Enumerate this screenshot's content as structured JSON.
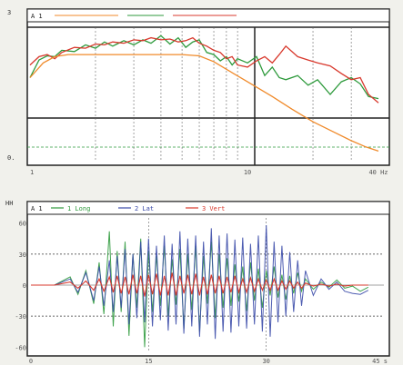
{
  "charts": {
    "top": {
      "side_top": "3",
      "side_bottom": "0.",
      "legend_title": "A 1",
      "x_ticks": [
        {
          "x": 1,
          "label": "1"
        },
        {
          "x": 10,
          "label": "10"
        },
        {
          "x": 40,
          "label": "40 Hz"
        }
      ]
    },
    "bottom": {
      "side_mark": "HH",
      "legend_title": "A 1",
      "legend": [
        {
          "label": "1 Long",
          "color": "#2e9a3c"
        },
        {
          "label": "2 Lat",
          "color": "#3a4aa8"
        },
        {
          "label": "3 Vert",
          "color": "#d8382c"
        }
      ],
      "y_ticks": [
        {
          "y": 60,
          "label": "60"
        },
        {
          "y": 30,
          "label": "30"
        },
        {
          "y": 0,
          "label": "0"
        },
        {
          "y": -30,
          "label": "-30"
        },
        {
          "y": -60,
          "label": "-60"
        }
      ],
      "x_ticks": [
        {
          "x": 0,
          "label": "0"
        },
        {
          "x": 15,
          "label": "15"
        },
        {
          "x": 30,
          "label": "30"
        },
        {
          "x": 45,
          "label": "45 s"
        }
      ]
    }
  },
  "chart_data": [
    {
      "type": "line",
      "title": "",
      "xscale": "log",
      "xlim": [
        1,
        40
      ],
      "ylim": [
        0,
        3.2
      ],
      "grid": true,
      "series": [
        {
          "color": "#2e9a3c",
          "x": [
            1,
            1.1,
            1.2,
            1.3,
            1.4,
            1.6,
            1.8,
            2,
            2.2,
            2.4,
            2.7,
            3,
            3.3,
            3.6,
            4,
            4.4,
            4.8,
            5.2,
            5.6,
            6,
            6.5,
            7,
            7.5,
            8,
            8.5,
            9,
            10,
            11,
            12,
            13,
            14,
            15,
            17,
            19,
            21,
            24,
            27,
            30,
            33,
            36,
            40
          ],
          "y": [
            2.0,
            2.42,
            2.52,
            2.5,
            2.65,
            2.62,
            2.78,
            2.7,
            2.85,
            2.75,
            2.88,
            2.78,
            2.9,
            2.82,
            3.0,
            2.8,
            2.95,
            2.72,
            2.85,
            2.9,
            2.6,
            2.55,
            2.4,
            2.5,
            2.3,
            2.45,
            2.35,
            2.5,
            2.05,
            2.25,
            2.0,
            1.95,
            2.05,
            1.82,
            1.95,
            1.6,
            1.9,
            2.0,
            1.85,
            1.55,
            1.5
          ]
        },
        {
          "color": "#d8382c",
          "x": [
            1,
            1.1,
            1.2,
            1.3,
            1.4,
            1.6,
            1.8,
            2,
            2.2,
            2.4,
            2.7,
            3,
            3.3,
            3.6,
            4,
            4.4,
            4.8,
            5.2,
            5.6,
            6,
            6.5,
            7,
            7.5,
            8,
            8.5,
            9,
            10,
            11,
            12,
            13,
            14,
            15,
            17,
            19,
            21,
            24,
            27,
            30,
            33,
            36,
            40
          ],
          "y": [
            2.3,
            2.5,
            2.55,
            2.45,
            2.6,
            2.72,
            2.7,
            2.8,
            2.78,
            2.85,
            2.82,
            2.9,
            2.88,
            2.95,
            2.9,
            2.92,
            2.85,
            2.88,
            2.95,
            2.82,
            2.75,
            2.65,
            2.6,
            2.45,
            2.5,
            2.3,
            2.25,
            2.4,
            2.5,
            2.35,
            2.55,
            2.75,
            2.5,
            2.42,
            2.35,
            2.28,
            2.1,
            1.95,
            2.0,
            1.6,
            1.4
          ]
        },
        {
          "color": "#f08a2a",
          "x": [
            1,
            1.15,
            1.3,
            1.5,
            2,
            3,
            4,
            5,
            6,
            7,
            8,
            10,
            13,
            16,
            20,
            25,
            30,
            35,
            40
          ],
          "y": [
            2.0,
            2.35,
            2.5,
            2.55,
            2.55,
            2.55,
            2.55,
            2.55,
            2.52,
            2.38,
            2.2,
            1.9,
            1.55,
            1.25,
            0.95,
            0.7,
            0.5,
            0.35,
            0.25
          ]
        }
      ]
    },
    {
      "type": "line",
      "title": "",
      "xlabel": "s",
      "xlim": [
        0,
        45
      ],
      "ylim": [
        -65,
        65
      ],
      "grid": true,
      "series": [
        {
          "color": "#2e9a3c",
          "x": [
            0,
            3,
            5,
            6,
            7,
            8,
            8.7,
            9.3,
            10,
            10.5,
            11,
            11.5,
            12,
            12.5,
            13,
            13.5,
            14,
            14.5,
            15,
            15.5,
            16,
            16.5,
            17,
            17.5,
            18,
            18.5,
            19,
            19.5,
            20,
            20.5,
            21,
            21.5,
            22,
            22.5,
            23,
            23.5,
            24,
            24.5,
            25,
            25.5,
            26,
            26.5,
            27,
            27.5,
            28,
            28.5,
            29,
            29.5,
            30,
            30.5,
            31,
            31.5,
            32,
            32.5,
            33,
            33.5,
            34,
            34.5,
            35,
            36,
            37,
            38,
            39,
            40,
            41,
            42,
            43
          ],
          "y": [
            0,
            0,
            8,
            -9,
            14,
            -18,
            22,
            -28,
            52,
            -40,
            33,
            -26,
            42,
            -49,
            30,
            -22,
            45,
            -60,
            33,
            -26,
            28,
            -20,
            38,
            -30,
            25,
            -19,
            35,
            -42,
            30,
            -24,
            38,
            -45,
            28,
            -18,
            42,
            -32,
            30,
            -22,
            26,
            -20,
            20,
            -16,
            18,
            -25,
            22,
            -15,
            16,
            -22,
            14,
            -10,
            18,
            -12,
            10,
            -14,
            9,
            -8,
            12,
            -6,
            6,
            -4,
            3,
            -2,
            5,
            -3,
            -1,
            -6,
            -2
          ]
        },
        {
          "color": "#3a4aa8",
          "x": [
            0,
            3,
            5,
            6,
            7,
            8,
            8.7,
            9.3,
            10,
            10.5,
            11,
            11.5,
            12,
            12.5,
            13,
            13.5,
            14,
            14.5,
            15,
            15.5,
            16,
            16.5,
            17,
            17.5,
            18,
            18.5,
            19,
            19.5,
            20,
            20.5,
            21,
            21.5,
            22,
            22.5,
            23,
            23.5,
            24,
            24.5,
            25,
            25.5,
            26,
            26.5,
            27,
            27.5,
            28,
            28.5,
            29,
            29.5,
            30,
            30.5,
            31,
            31.5,
            32,
            32.5,
            33,
            33.5,
            34,
            34.5,
            35,
            36,
            37,
            38,
            39,
            40,
            41,
            42,
            43
          ],
          "y": [
            0,
            0,
            6,
            -7,
            12,
            -15,
            18,
            -20,
            24,
            -26,
            28,
            -22,
            35,
            -38,
            30,
            -32,
            42,
            -36,
            45,
            -40,
            38,
            -34,
            48,
            -44,
            40,
            -38,
            52,
            -47,
            45,
            -40,
            48,
            -50,
            42,
            -38,
            55,
            -52,
            48,
            -45,
            50,
            -46,
            44,
            -40,
            46,
            -42,
            40,
            -38,
            48,
            -45,
            58,
            -50,
            42,
            -36,
            38,
            -30,
            32,
            -26,
            24,
            -20,
            14,
            -10,
            6,
            -4,
            3,
            -6,
            -8,
            -9,
            -5
          ]
        },
        {
          "color": "#d8382c",
          "x": [
            0,
            3,
            5,
            6,
            7,
            8,
            8.7,
            9.3,
            10,
            10.5,
            11,
            11.5,
            12,
            12.5,
            13,
            13.5,
            14,
            14.5,
            15,
            15.5,
            16,
            16.5,
            17,
            17.5,
            18,
            18.5,
            19,
            19.5,
            20,
            20.5,
            21,
            21.5,
            22,
            22.5,
            23,
            23.5,
            24,
            24.5,
            25,
            25.5,
            26,
            26.5,
            27,
            27.5,
            28,
            28.5,
            29,
            29.5,
            30,
            30.5,
            31,
            31.5,
            32,
            32.5,
            33,
            33.5,
            34,
            34.5,
            35,
            36,
            37,
            38,
            39,
            40,
            41,
            42,
            43
          ],
          "y": [
            0,
            0,
            3,
            -3,
            4,
            -5,
            6,
            -6,
            8,
            -7,
            9,
            -8,
            8,
            -9,
            10,
            -8,
            9,
            -11,
            10,
            -9,
            11,
            -10,
            9,
            -10,
            12,
            -10,
            9,
            -8,
            10,
            -9,
            11,
            -10,
            8,
            -9,
            10,
            -8,
            9,
            -8,
            8,
            -7,
            9,
            -7,
            6,
            -7,
            7,
            -6,
            6,
            -5,
            5,
            -5,
            6,
            -5,
            4,
            -4,
            4,
            -3,
            3,
            -3,
            2,
            -1,
            1,
            -1,
            1,
            -1,
            0,
            0,
            0
          ]
        }
      ]
    }
  ]
}
